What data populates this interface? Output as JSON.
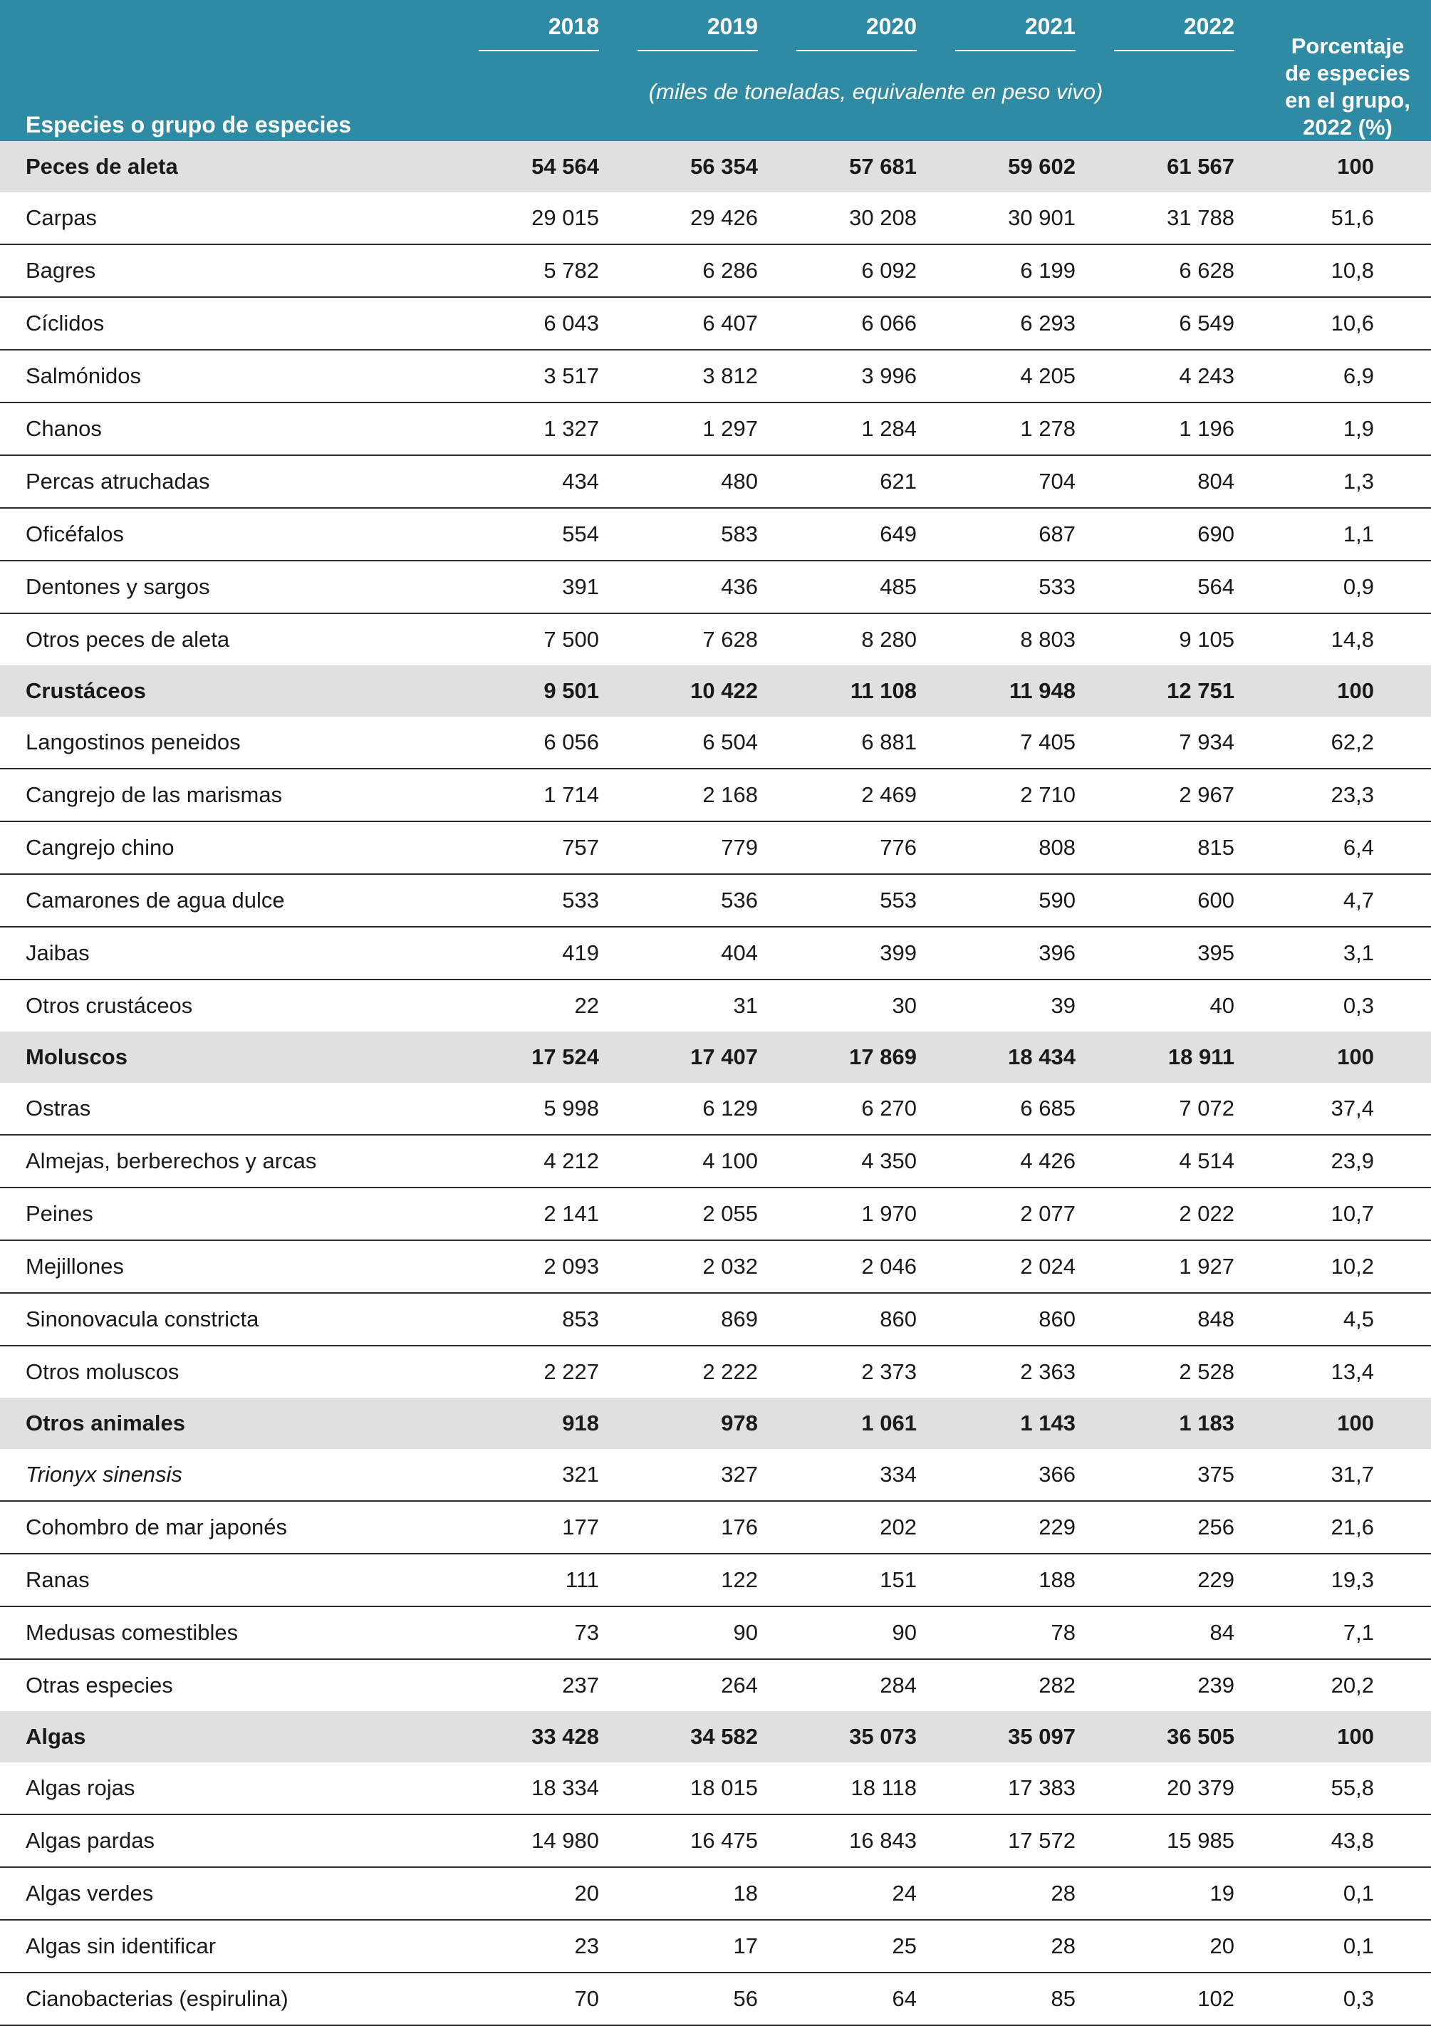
{
  "header": {
    "species_label": "Especies o grupo de especies",
    "years": [
      "2018",
      "2019",
      "2020",
      "2021",
      "2022"
    ],
    "units": "(miles de toneladas, equivalente en peso vivo)",
    "pct_line1": "Porcentaje",
    "pct_line2": "de especies",
    "pct_line3": "en el grupo,",
    "pct_line4": "2022 (%)"
  },
  "rows": [
    {
      "name": "Peces de aleta",
      "v": [
        "54 564",
        "56 354",
        "57 681",
        "59 602",
        "61 567"
      ],
      "pct": "100"
    },
    {
      "name": "Carpas",
      "v": [
        "29 015",
        "29 426",
        "30 208",
        "30 901",
        "31 788"
      ],
      "pct": "51,6"
    },
    {
      "name": "Bagres",
      "v": [
        "5 782",
        "6 286",
        "6 092",
        "6 199",
        "6 628"
      ],
      "pct": "10,8"
    },
    {
      "name": "Cíclidos",
      "v": [
        "6 043",
        "6 407",
        "6 066",
        "6 293",
        "6 549"
      ],
      "pct": "10,6"
    },
    {
      "name": "Salmónidos",
      "v": [
        "3 517",
        "3 812",
        "3 996",
        "4 205",
        "4 243"
      ],
      "pct": "6,9"
    },
    {
      "name": "Chanos",
      "v": [
        "1 327",
        "1 297",
        "1 284",
        "1 278",
        "1 196"
      ],
      "pct": "1,9"
    },
    {
      "name": "Percas atruchadas",
      "v": [
        "434",
        "480",
        "621",
        "704",
        "804"
      ],
      "pct": "1,3"
    },
    {
      "name": "Oficéfalos",
      "v": [
        "554",
        "583",
        "649",
        "687",
        "690"
      ],
      "pct": "1,1"
    },
    {
      "name": "Dentones y sargos",
      "v": [
        "391",
        "436",
        "485",
        "533",
        "564"
      ],
      "pct": "0,9"
    },
    {
      "name": "Otros peces de aleta",
      "v": [
        "7 500",
        "7 628",
        "8 280",
        "8 803",
        "9 105"
      ],
      "pct": "14,8"
    },
    {
      "name": "Crustáceos",
      "v": [
        "9 501",
        "10 422",
        "11 108",
        "11 948",
        "12 751"
      ],
      "pct": "100"
    },
    {
      "name": "Langostinos peneidos",
      "v": [
        "6 056",
        "6 504",
        "6 881",
        "7 405",
        "7 934"
      ],
      "pct": "62,2"
    },
    {
      "name": "Cangrejo de las marismas",
      "v": [
        "1 714",
        "2 168",
        "2 469",
        "2 710",
        "2 967"
      ],
      "pct": "23,3"
    },
    {
      "name": "Cangrejo chino",
      "v": [
        "757",
        "779",
        "776",
        "808",
        "815"
      ],
      "pct": "6,4"
    },
    {
      "name": "Camarones de agua dulce",
      "v": [
        "533",
        "536",
        "553",
        "590",
        "600"
      ],
      "pct": "4,7"
    },
    {
      "name": "Jaibas",
      "v": [
        "419",
        "404",
        "399",
        "396",
        "395"
      ],
      "pct": "3,1"
    },
    {
      "name": "Otros crustáceos",
      "v": [
        "22",
        "31",
        "30",
        "39",
        "40"
      ],
      "pct": "0,3"
    },
    {
      "name": "Moluscos",
      "v": [
        "17 524",
        "17 407",
        "17 869",
        "18 434",
        "18 911"
      ],
      "pct": "100"
    },
    {
      "name": "Ostras",
      "v": [
        "5 998",
        "6 129",
        "6 270",
        "6 685",
        "7 072"
      ],
      "pct": "37,4"
    },
    {
      "name": "Almejas, berberechos y arcas",
      "v": [
        "4 212",
        "4 100",
        "4 350",
        "4 426",
        "4 514"
      ],
      "pct": "23,9"
    },
    {
      "name": "Peines",
      "v": [
        "2 141",
        "2 055",
        "1 970",
        "2 077",
        "2 022"
      ],
      "pct": "10,7"
    },
    {
      "name": "Mejillones",
      "v": [
        "2 093",
        "2 032",
        "2 046",
        "2 024",
        "1 927"
      ],
      "pct": "10,2"
    },
    {
      "name": "Sinonovacula constricta",
      "v": [
        "853",
        "869",
        "860",
        "860",
        "848"
      ],
      "pct": "4,5"
    },
    {
      "name": "Otros moluscos",
      "v": [
        "2 227",
        "2 222",
        "2 373",
        "2 363",
        "2 528"
      ],
      "pct": "13,4"
    },
    {
      "name": "Otros animales",
      "v": [
        "918",
        "978",
        "1 061",
        "1 143",
        "1 183"
      ],
      "pct": "100"
    },
    {
      "name": "Trionyx sinensis",
      "v": [
        "321",
        "327",
        "334",
        "366",
        "375"
      ],
      "pct": "31,7"
    },
    {
      "name": "Cohombro de mar japonés",
      "v": [
        "177",
        "176",
        "202",
        "229",
        "256"
      ],
      "pct": "21,6"
    },
    {
      "name": "Ranas",
      "v": [
        "111",
        "122",
        "151",
        "188",
        "229"
      ],
      "pct": "19,3"
    },
    {
      "name": "Medusas comestibles",
      "v": [
        "73",
        "90",
        "90",
        "78",
        "84"
      ],
      "pct": "7,1"
    },
    {
      "name": "Otras especies",
      "v": [
        "237",
        "264",
        "284",
        "282",
        "239"
      ],
      "pct": "20,2"
    },
    {
      "name": "Algas",
      "v": [
        "33 428",
        "34 582",
        "35 073",
        "35 097",
        "36 505"
      ],
      "pct": "100"
    },
    {
      "name": "Algas rojas",
      "v": [
        "18 334",
        "18 015",
        "18 118",
        "17 383",
        "20 379"
      ],
      "pct": "55,8"
    },
    {
      "name": "Algas pardas",
      "v": [
        "14 980",
        "16 475",
        "16 843",
        "17 572",
        "15 985"
      ],
      "pct": "43,8"
    },
    {
      "name": "Algas verdes",
      "v": [
        "20",
        "18",
        "24",
        "28",
        "19"
      ],
      "pct": "0,1"
    },
    {
      "name": "Algas sin identificar",
      "v": [
        "23",
        "17",
        "25",
        "28",
        "20"
      ],
      "pct": "0,1"
    },
    {
      "name": "Cianobacterias (espirulina)",
      "v": [
        "70",
        "56",
        "64",
        "85",
        "102"
      ],
      "pct": "0,3"
    }
  ]
}
